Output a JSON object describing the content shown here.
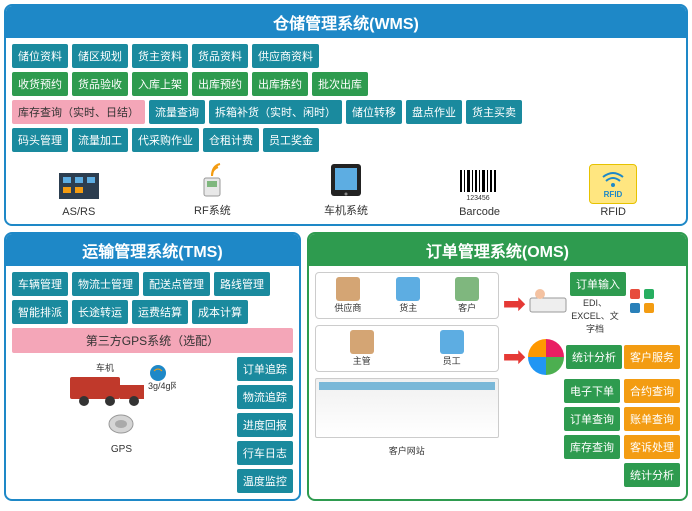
{
  "colors": {
    "blue": "#1e88c7",
    "green": "#2e9b4f",
    "teal": "#1a8a9e",
    "pink": "#f4a6b8",
    "orange": "#f39c12",
    "red": "#e53935"
  },
  "wms": {
    "title": "仓储管理系统(WMS)",
    "rows": [
      [
        {
          "t": "储位资料",
          "c": "teal"
        },
        {
          "t": "储区规划",
          "c": "teal"
        },
        {
          "t": "货主资料",
          "c": "teal"
        },
        {
          "t": "货品资料",
          "c": "teal"
        },
        {
          "t": "供应商资料",
          "c": "teal"
        }
      ],
      [
        {
          "t": "收货预约",
          "c": "green"
        },
        {
          "t": "货品验收",
          "c": "green"
        },
        {
          "t": "入库上架",
          "c": "green"
        },
        {
          "t": "出库预约",
          "c": "green"
        },
        {
          "t": "出库拣约",
          "c": "green"
        },
        {
          "t": "批次出库",
          "c": "green"
        }
      ],
      [
        {
          "t": "库存查询（实时、日结）",
          "c": "pink",
          "tc": "#333"
        },
        {
          "t": "流量查询",
          "c": "teal"
        },
        {
          "t": "拆箱补货（实时、闲时）",
          "c": "teal"
        },
        {
          "t": "储位转移",
          "c": "teal"
        },
        {
          "t": "盘点作业",
          "c": "teal"
        },
        {
          "t": "货主买卖",
          "c": "teal"
        }
      ],
      [
        {
          "t": "码头管理",
          "c": "teal"
        },
        {
          "t": "流量加工",
          "c": "teal"
        },
        {
          "t": "代采购作业",
          "c": "teal"
        },
        {
          "t": "仓租计费",
          "c": "teal"
        },
        {
          "t": "员工奖金",
          "c": "teal"
        }
      ]
    ],
    "icons": [
      {
        "label": "AS/RS",
        "kind": "asrs"
      },
      {
        "label": "RF系统",
        "kind": "rf"
      },
      {
        "label": "车机系统",
        "kind": "tablet"
      },
      {
        "label": "Barcode",
        "kind": "barcode"
      },
      {
        "label": "RFID",
        "kind": "rfid"
      }
    ]
  },
  "tms": {
    "title": "运输管理系统(TMS)",
    "rows": [
      [
        {
          "t": "车辆管理",
          "c": "teal"
        },
        {
          "t": "物流士管理",
          "c": "teal"
        },
        {
          "t": "配送点管理",
          "c": "teal"
        },
        {
          "t": "路线管理",
          "c": "teal"
        }
      ],
      [
        {
          "t": "智能排派",
          "c": "teal"
        },
        {
          "t": "长途转运",
          "c": "teal"
        },
        {
          "t": "运费结算",
          "c": "teal"
        },
        {
          "t": "成本计算",
          "c": "teal"
        }
      ]
    ],
    "gps_bar": "第三方GPS系统（选配）",
    "left_labels": {
      "truck": "车机",
      "net": "3g/4g网络",
      "gps": "GPS"
    },
    "track_btns": [
      "订单追踪",
      "物流追踪",
      "进度回报",
      "行车日志",
      "温度监控"
    ]
  },
  "oms": {
    "title": "订单管理系统(OMS)",
    "actors1": [
      "供应商",
      "货主",
      "客户"
    ],
    "actors2": [
      "主管",
      "员工"
    ],
    "portal": "客户网站",
    "input_label": "订单输入",
    "input_sub": "EDI、EXCEL、文字档",
    "stats_label": "统计分析",
    "svc_label": "客户服务",
    "btn_pairs": [
      [
        "电子下单",
        "合约查询"
      ],
      [
        "订单查询",
        "账单查询"
      ],
      [
        "库存查询",
        "客诉处理"
      ],
      [
        "统计分析",
        ""
      ]
    ]
  }
}
